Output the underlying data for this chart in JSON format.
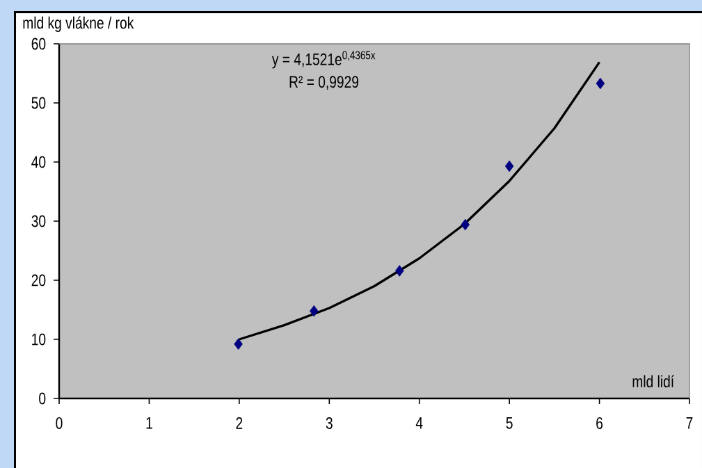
{
  "chart_data": {
    "type": "scatter",
    "xlabel": "mld lidí",
    "ylabel": "mld kg vlákne / rok",
    "annotations": [
      "y = 4,1521e$^{0,4365x}$",
      "R² = 0,9929"
    ],
    "xlim": [
      0,
      7
    ],
    "ylim": [
      0,
      60
    ],
    "xticks": [
      0,
      1,
      2,
      3,
      4,
      5,
      6,
      7
    ],
    "yticks": [
      0,
      10,
      20,
      30,
      40,
      50,
      60
    ],
    "series": [
      {
        "type": "scatter",
        "color": "#000080",
        "marker": "diamond",
        "x": [
          1.99,
          2.83,
          3.78,
          4.51,
          5.0,
          6.01
        ],
        "values": [
          9.2,
          14.8,
          21.6,
          29.4,
          39.3,
          53.3
        ]
      },
      {
        "type": "line",
        "color": "#000000",
        "marker": "none",
        "line_style": "solid",
        "x": [
          2,
          2.5,
          3,
          3.5,
          4,
          4.5,
          5,
          5.5,
          6
        ],
        "values": [
          10.0,
          12.4,
          15.3,
          19.0,
          23.7,
          29.5,
          36.8,
          45.7,
          56.9
        ]
      }
    ]
  }
}
